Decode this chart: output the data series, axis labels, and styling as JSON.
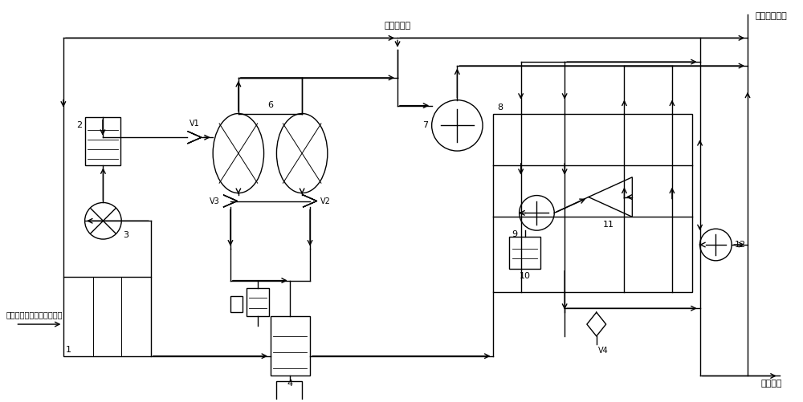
{
  "bg": "#ffffff",
  "lc": "#000000",
  "lw": 1.0,
  "label_input": "出绻色电解水装置副产氧气",
  "label_supplement": "补充循环气",
  "label_high_pressure": "高压氧气产品",
  "label_liquid_oxygen": "液氧产品"
}
